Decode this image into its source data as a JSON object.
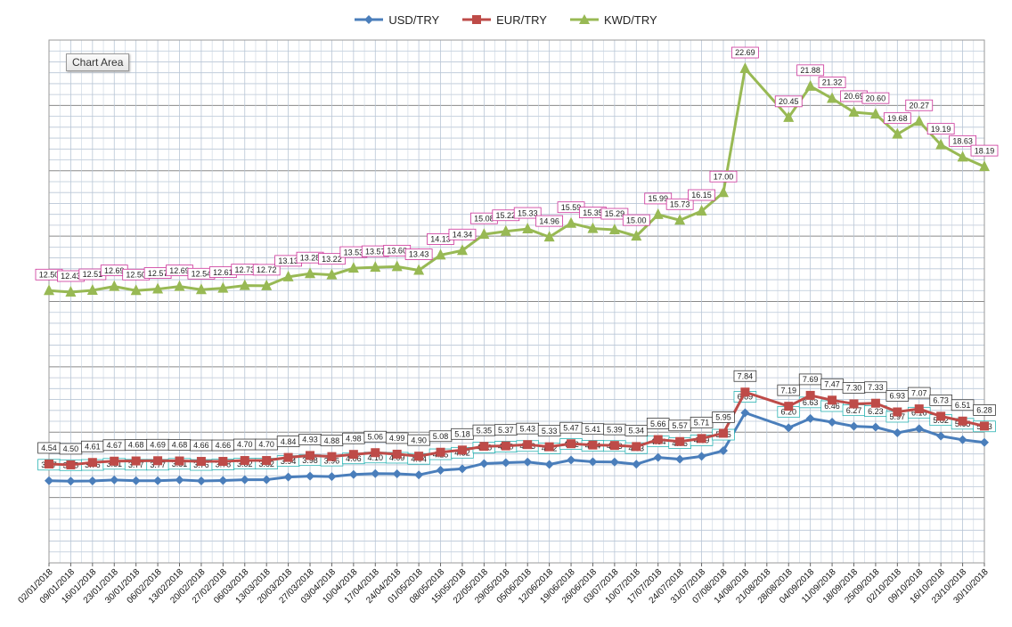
{
  "chart_area_tag": "Chart Area",
  "chart_data": {
    "type": "line",
    "categories": [
      "02/01/2018",
      "09/01/2018",
      "16/01/2018",
      "23/01/2018",
      "30/01/2018",
      "06/02/2018",
      "13/02/2018",
      "20/02/2018",
      "27/02/2018",
      "06/03/2018",
      "13/03/2018",
      "20/03/2018",
      "27/03/2018",
      "03/04/2018",
      "10/04/2018",
      "17/04/2018",
      "24/04/2018",
      "01/05/2018",
      "08/05/2018",
      "15/05/2018",
      "22/05/2018",
      "29/05/2018",
      "05/06/2018",
      "12/06/2018",
      "19/06/2018",
      "26/06/2018",
      "03/07/2018",
      "10/07/2018",
      "17/07/2018",
      "24/07/2018",
      "31/07/2018",
      "07/08/2018",
      "14/08/2018",
      "21/08/2018",
      "28/08/2018",
      "04/09/2018",
      "11/09/2018",
      "18/09/2018",
      "25/09/2018",
      "02/10/2018",
      "09/10/2018",
      "16/10/2018",
      "23/10/2018",
      "30/10/2018"
    ],
    "label_categories": [
      "02/01/2018",
      "09/01/2018",
      "16/01/2018",
      "23/01/2018",
      "30/01/2018",
      "06/02/2018",
      "13/02/2018",
      "20/02/2018",
      "27/02/2018",
      "06/03/2018",
      "13/03/2018",
      "20/03/2018",
      "27/03/2018",
      "03/04/2018",
      "10/04/2018",
      "17/04/2018",
      "24/04/2018",
      "01/05/2018",
      "08/05/2018",
      "15/05/2018",
      "22/05/2018",
      "29/05/2018",
      "05/06/2018",
      "12/06/2018",
      "19/06/2018",
      "26/06/2018",
      "03/07/2018",
      "10/07/2018",
      "17/07/2018",
      "24/07/2018",
      "31/07/2018",
      "07/08/2018",
      "14/08/2018",
      "21/08/2018",
      "28/08/2018",
      "04/09/2018",
      "11/09/2018",
      "18/09/2018",
      "25/09/2018",
      "02/10/2018",
      "09/10/2018",
      "16/10/2018",
      "23/10/2018",
      "30/10/2018"
    ],
    "series": [
      {
        "name": "USD/TRY",
        "color": "#4a7ebb",
        "marker": "diamond",
        "label_border": "#2bb3b3",
        "values": [
          3.77,
          3.75,
          3.76,
          3.81,
          3.77,
          3.77,
          3.81,
          3.76,
          3.78,
          3.82,
          3.82,
          3.94,
          3.98,
          3.96,
          4.06,
          4.1,
          4.09,
          4.04,
          4.25,
          4.32,
          4.56,
          4.6,
          4.63,
          4.52,
          4.72,
          4.64,
          4.63,
          4.53,
          4.84,
          4.76,
          4.89,
          5.15,
          6.89,
          null,
          6.2,
          6.63,
          6.46,
          6.27,
          6.23,
          5.97,
          6.16,
          5.82,
          5.65,
          5.53
        ]
      },
      {
        "name": "EUR/TRY",
        "color": "#be4b48",
        "marker": "square",
        "label_border": "#3a3a3a",
        "values": [
          4.54,
          4.5,
          4.61,
          4.67,
          4.68,
          4.69,
          4.68,
          4.66,
          4.66,
          4.7,
          4.7,
          4.84,
          4.93,
          4.88,
          4.98,
          5.06,
          4.99,
          4.9,
          5.08,
          5.18,
          5.35,
          5.37,
          5.43,
          5.33,
          5.47,
          5.41,
          5.39,
          5.34,
          5.66,
          5.57,
          5.71,
          5.95,
          7.84,
          null,
          7.19,
          7.69,
          7.47,
          7.3,
          7.33,
          6.93,
          7.07,
          6.73,
          6.51,
          6.28
        ]
      },
      {
        "name": "KWD/TRY",
        "color": "#98b954",
        "marker": "triangle",
        "label_border": "#cc3399",
        "values": [
          12.5,
          12.43,
          12.51,
          12.69,
          12.5,
          12.57,
          12.69,
          12.54,
          12.61,
          12.73,
          12.72,
          13.13,
          13.28,
          13.22,
          13.53,
          13.57,
          13.6,
          13.43,
          14.13,
          14.34,
          15.08,
          15.22,
          15.33,
          14.96,
          15.59,
          15.35,
          15.29,
          15.0,
          15.99,
          15.73,
          16.15,
          17.0,
          22.69,
          null,
          20.45,
          21.88,
          21.32,
          20.69,
          20.6,
          19.68,
          20.27,
          19.19,
          18.63,
          18.19
        ]
      }
    ],
    "y_range": [
      0,
      24
    ],
    "grid": true,
    "legend_position": "top-center",
    "title": "",
    "xlabel": "",
    "ylabel": ""
  }
}
